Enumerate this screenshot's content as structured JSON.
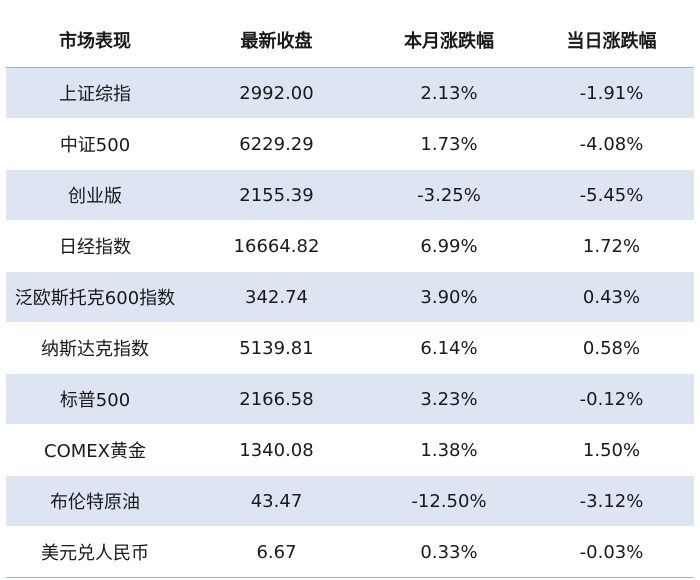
{
  "table": {
    "headers": [
      "市场表现",
      "最新收盘",
      "本月涨跌幅",
      "当日涨跌幅"
    ],
    "rows": [
      [
        "上证综指",
        "2992.00",
        "2.13%",
        "-1.91%"
      ],
      [
        "中证500",
        "6229.29",
        "1.73%",
        "-4.08%"
      ],
      [
        "创业版",
        "2155.39",
        "-3.25%",
        "-5.45%"
      ],
      [
        "日经指数",
        "16664.82",
        "6.99%",
        "1.72%"
      ],
      [
        "泛欧斯托克600指数",
        "342.74",
        "3.90%",
        "0.43%"
      ],
      [
        "纳斯达克指数",
        "5139.81",
        "6.14%",
        "0.58%"
      ],
      [
        "标普500",
        "2166.58",
        "3.23%",
        "-0.12%"
      ],
      [
        "COMEX黄金",
        "1340.08",
        "1.38%",
        "1.50%"
      ],
      [
        "布伦特原油",
        "43.47",
        "-12.50%",
        "-3.12%"
      ],
      [
        "美元兑人民币",
        "6.67",
        "0.33%",
        "-0.03%"
      ]
    ]
  },
  "colors": {
    "row_shade": "#dce5f1",
    "rule": "#9db4cf"
  }
}
